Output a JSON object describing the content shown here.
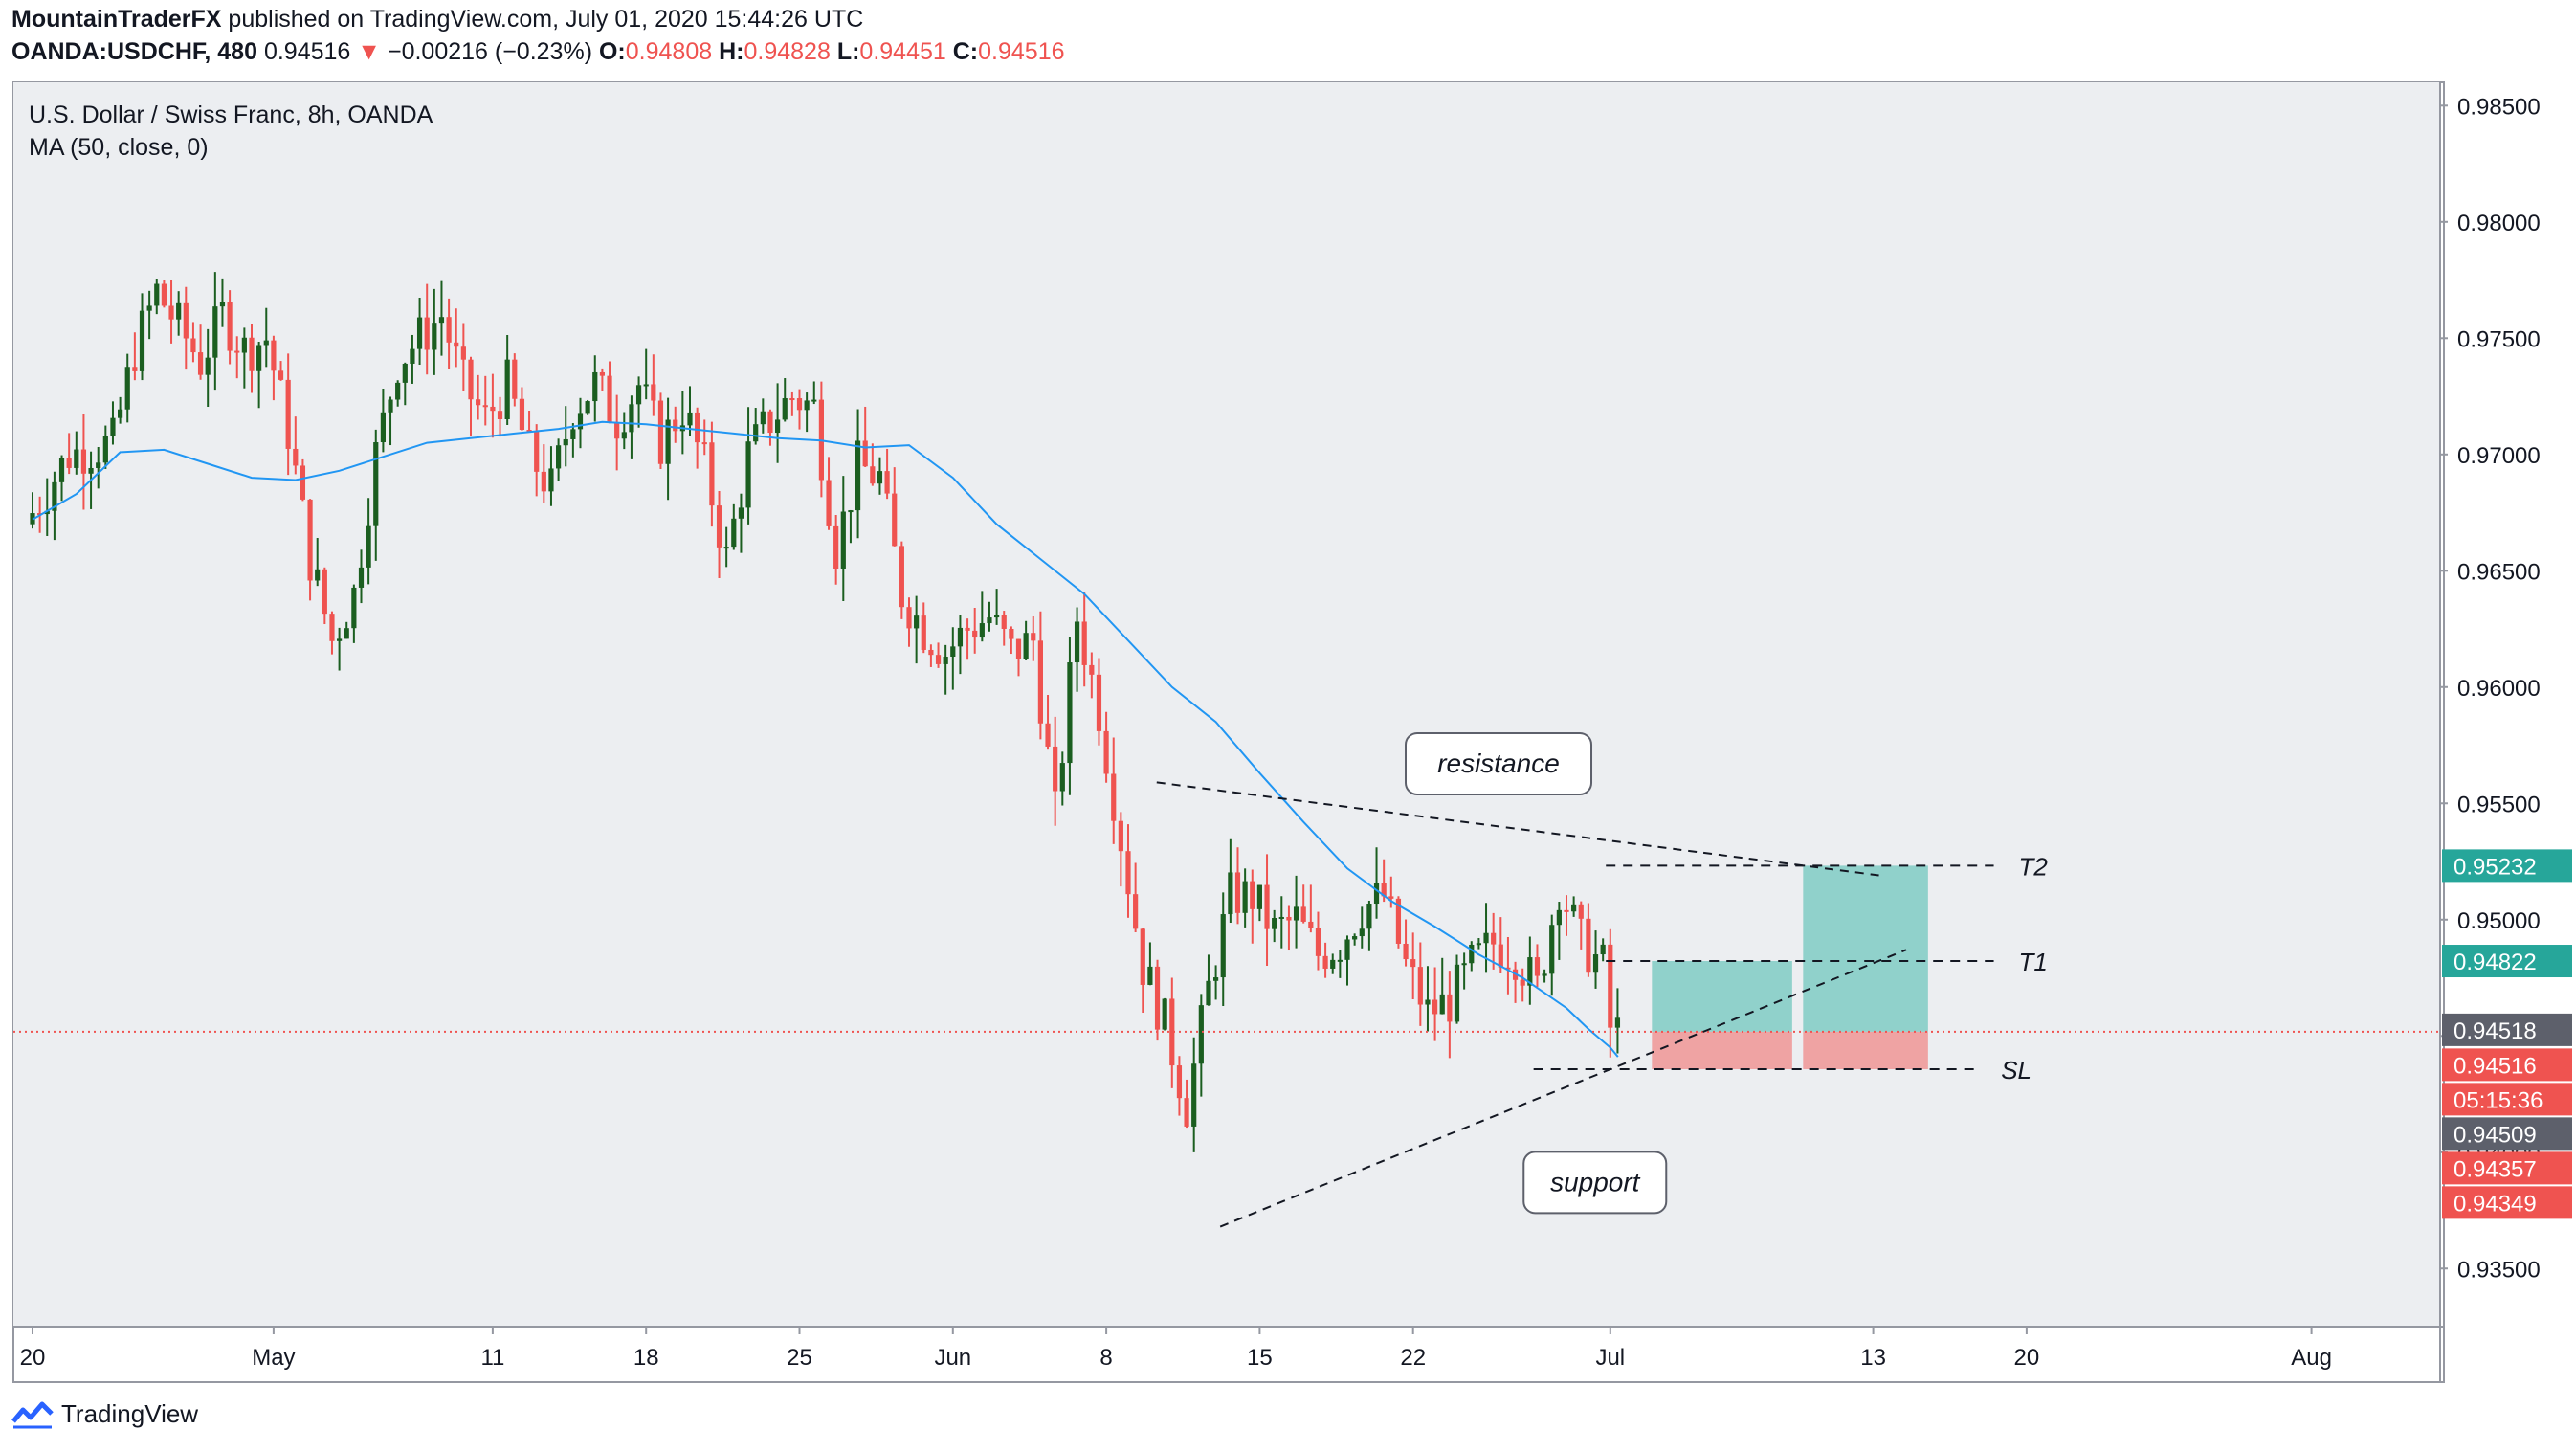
{
  "header": {
    "author": "MountainTraderFX",
    "published": "published on TradingView.com, July 01, 2020 15:44:26 UTC",
    "symbol": "OANDA:USDCHF, 480",
    "last": "0.94516",
    "change": "−0.00216 (−0.23%)",
    "open_label": "O:",
    "open": "0.94808",
    "high_label": "H:",
    "high": "0.94828",
    "low_label": "L:",
    "low": "0.94451",
    "close_label": "C:",
    "close": "0.94516"
  },
  "legend": {
    "title": "U.S. Dollar / Swiss Franc, 8h, OANDA",
    "indicator": "MA (50, close, 0)"
  },
  "brand": {
    "name": "TradingView"
  },
  "colors": {
    "up": "#26a69a",
    "down": "#ef5350",
    "dark_up": "#1b5e20",
    "ma": "#2196f3",
    "target_zone": "#80cbc4",
    "stop_zone": "#ef9a9a",
    "plot_bg": "#eceef1"
  },
  "chart_data": {
    "type": "candlestick",
    "title": "U.S. Dollar / Swiss Franc, 8h, OANDA",
    "ylim": [
      0.9325,
      0.986
    ],
    "y_ticks": [
      "0.98500",
      "0.98000",
      "0.97500",
      "0.97000",
      "0.96500",
      "0.96000",
      "0.95500",
      "0.95000",
      "0.94500",
      "0.94000",
      "0.93500"
    ],
    "y_tick_values": [
      0.985,
      0.98,
      0.975,
      0.97,
      0.965,
      0.96,
      0.955,
      0.95,
      0.945,
      0.94,
      0.935
    ],
    "x_ticks": [
      {
        "label": "20",
        "day": 0
      },
      {
        "label": "May",
        "day": 11
      },
      {
        "label": "11",
        "day": 21
      },
      {
        "label": "18",
        "day": 28
      },
      {
        "label": "25",
        "day": 35
      },
      {
        "label": "Jun",
        "day": 42
      },
      {
        "label": "8",
        "day": 49
      },
      {
        "label": "15",
        "day": 56
      },
      {
        "label": "22",
        "day": 63
      },
      {
        "label": "Jul",
        "day": 72
      },
      {
        "label": "13",
        "day": 84
      },
      {
        "label": "20",
        "day": 91
      },
      {
        "label": "Aug",
        "day": 104
      }
    ],
    "price_anchors": [
      [
        0,
        0.967
      ],
      [
        2,
        0.97
      ],
      [
        4,
        0.9705
      ],
      [
        5,
        0.9745
      ],
      [
        6,
        0.977
      ],
      [
        7,
        0.9755
      ],
      [
        8,
        0.974
      ],
      [
        9,
        0.976
      ],
      [
        10,
        0.9745
      ],
      [
        11,
        0.975
      ],
      [
        12,
        0.971
      ],
      [
        13,
        0.9655
      ],
      [
        14,
        0.962
      ],
      [
        15,
        0.964
      ],
      [
        16,
        0.97
      ],
      [
        17,
        0.974
      ],
      [
        18,
        0.975
      ],
      [
        19,
        0.976
      ],
      [
        20,
        0.973
      ],
      [
        21,
        0.9715
      ],
      [
        22,
        0.973
      ],
      [
        23,
        0.97
      ],
      [
        24,
        0.9685
      ],
      [
        25,
        0.972
      ],
      [
        26,
        0.973
      ],
      [
        27,
        0.9715
      ],
      [
        28,
        0.973
      ],
      [
        29,
        0.9705
      ],
      [
        30,
        0.972
      ],
      [
        31,
        0.9695
      ],
      [
        32,
        0.9655
      ],
      [
        33,
        0.97
      ],
      [
        34,
        0.9715
      ],
      [
        35,
        0.9725
      ],
      [
        36,
        0.972
      ],
      [
        37,
        0.966
      ],
      [
        38,
        0.9695
      ],
      [
        39,
        0.969
      ],
      [
        40,
        0.964
      ],
      [
        41,
        0.9625
      ],
      [
        42,
        0.9615
      ],
      [
        43,
        0.9625
      ],
      [
        44,
        0.963
      ],
      [
        45,
        0.9615
      ],
      [
        46,
        0.962
      ],
      [
        47,
        0.9545
      ],
      [
        48,
        0.963
      ],
      [
        49,
        0.959
      ],
      [
        50,
        0.9535
      ],
      [
        51,
        0.948
      ],
      [
        52,
        0.9455
      ],
      [
        53,
        0.942
      ],
      [
        54,
        0.947
      ],
      [
        55,
        0.951
      ],
      [
        56,
        0.951
      ],
      [
        57,
        0.9495
      ],
      [
        58,
        0.95
      ],
      [
        59,
        0.9485
      ],
      [
        60,
        0.949
      ],
      [
        61,
        0.9505
      ],
      [
        62,
        0.951
      ],
      [
        63,
        0.948
      ],
      [
        64,
        0.946
      ],
      [
        65,
        0.9465
      ],
      [
        66,
        0.948
      ],
      [
        67,
        0.949
      ],
      [
        68,
        0.9485
      ],
      [
        69,
        0.947
      ],
      [
        70,
        0.9515
      ],
      [
        71,
        0.949
      ],
      [
        72,
        0.948
      ],
      [
        72.35,
        0.9452
      ]
    ],
    "ma_anchors": [
      [
        0,
        0.9672
      ],
      [
        2,
        0.9683
      ],
      [
        4,
        0.9701
      ],
      [
        6,
        0.9702
      ],
      [
        8,
        0.9696
      ],
      [
        10,
        0.969
      ],
      [
        12,
        0.9689
      ],
      [
        14,
        0.9693
      ],
      [
        16,
        0.9699
      ],
      [
        18,
        0.9705
      ],
      [
        20,
        0.9707
      ],
      [
        22,
        0.9709
      ],
      [
        24,
        0.9711
      ],
      [
        26,
        0.9714
      ],
      [
        28,
        0.9713
      ],
      [
        30,
        0.9711
      ],
      [
        32,
        0.9709
      ],
      [
        34,
        0.9707
      ],
      [
        36,
        0.9706
      ],
      [
        38,
        0.9703
      ],
      [
        40,
        0.9704
      ],
      [
        42,
        0.969
      ],
      [
        44,
        0.967
      ],
      [
        46,
        0.9655
      ],
      [
        48,
        0.964
      ],
      [
        50,
        0.962
      ],
      [
        52,
        0.96
      ],
      [
        54,
        0.9585
      ],
      [
        56,
        0.9563
      ],
      [
        58,
        0.9542
      ],
      [
        60,
        0.9522
      ],
      [
        62,
        0.9508
      ],
      [
        64,
        0.9497
      ],
      [
        66,
        0.9485
      ],
      [
        68,
        0.9475
      ],
      [
        70,
        0.9462
      ],
      [
        71,
        0.9453
      ],
      [
        72,
        0.9445
      ],
      [
        72.35,
        0.9441
      ]
    ],
    "series": [
      {
        "name": "MA (50, close, 0)",
        "type": "line"
      }
    ],
    "trendlines": [
      {
        "from": [
          51.3,
          0.9559
        ],
        "to": [
          84.3,
          0.9519
        ],
        "style": "dashed"
      },
      {
        "from": [
          54.2,
          0.9368
        ],
        "to": [
          85.5,
          0.9487
        ],
        "style": "dashed"
      }
    ],
    "levels": [
      {
        "label": "T2",
        "value": 0.95232,
        "x_from": 71.8,
        "x_to": 89.5
      },
      {
        "label": "T1",
        "value": 0.94822,
        "x_from": 71.8,
        "x_to": 89.5
      },
      {
        "label": "SL",
        "value": 0.94357,
        "x_from": 68.5,
        "x_to": 88.7
      }
    ],
    "positions": [
      {
        "entry": 0.94518,
        "target": 0.94822,
        "stop": 0.94357,
        "x_from": 73.9,
        "x_to": 80.3
      },
      {
        "entry": 0.94518,
        "target": 0.95232,
        "stop": 0.94357,
        "x_from": 80.8,
        "x_to": 86.5
      }
    ],
    "annotations": [
      {
        "text": "resistance",
        "day": 66.9,
        "value": 0.9567
      },
      {
        "text": "support",
        "day": 71.3,
        "value": 0.9387
      }
    ],
    "current_price_line": 0.94518,
    "price_labels": [
      {
        "text": "0.95232",
        "value": 0.95232,
        "bg": "#26a69a"
      },
      {
        "text": "0.94822",
        "value": 0.94822,
        "bg": "#26a69a"
      },
      {
        "text": "0.94518",
        "value": 0.94518,
        "bg": "#5d606b"
      },
      {
        "text": "0.94516",
        "value": 0.94516,
        "bg": "#ef5350"
      },
      {
        "text": "05:15:36",
        "value": 0.94516,
        "bg": "#ef5350",
        "offset": 1
      },
      {
        "text": "0.94509",
        "value": 0.94509,
        "bg": "#5d606b",
        "offset": 2
      },
      {
        "text": "0.94357",
        "value": 0.94357,
        "bg": "#ef5350",
        "offset": 3
      },
      {
        "text": "0.94349",
        "value": 0.94349,
        "bg": "#ef5350",
        "offset": 4
      }
    ]
  }
}
